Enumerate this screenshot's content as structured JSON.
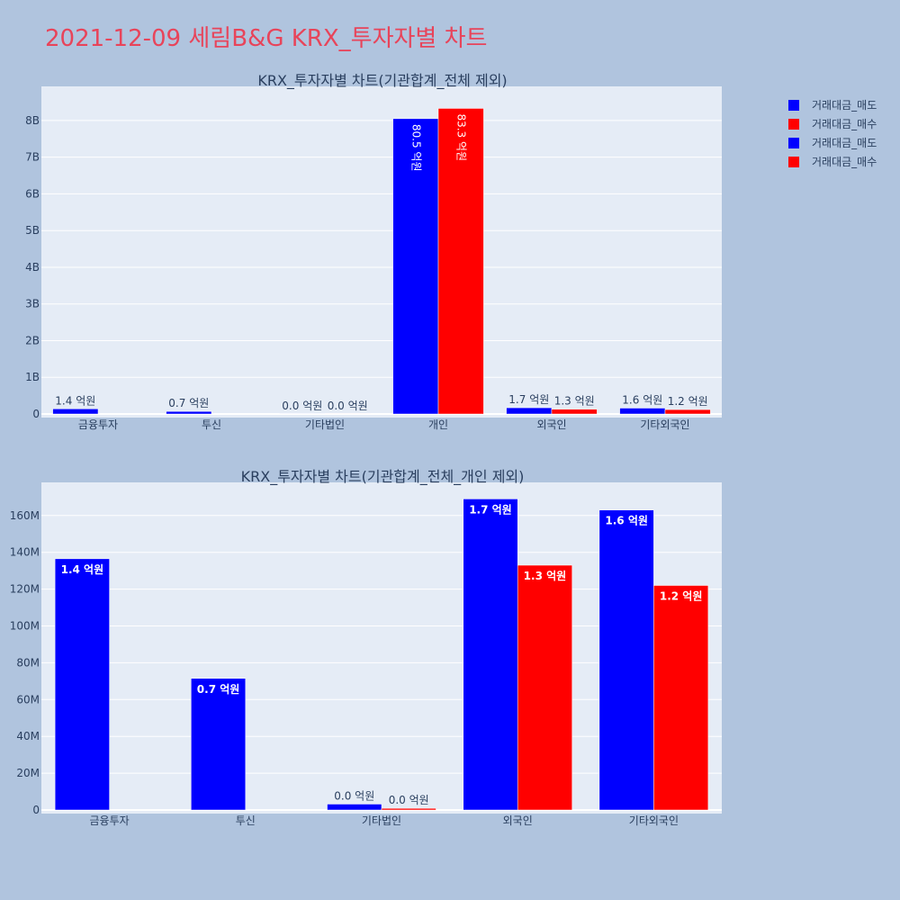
{
  "page": {
    "title": "2021-12-09 세림B&G KRX_투자자별 차트"
  },
  "legend": [
    {
      "label": "거래대금_매도",
      "color": "#0000ff"
    },
    {
      "label": "거래대금_매수",
      "color": "#ff0000"
    },
    {
      "label": "거래대금_매도",
      "color": "#0000ff"
    },
    {
      "label": "거래대금_매수",
      "color": "#ff0000"
    }
  ],
  "colors": {
    "sell": "#0000ff",
    "buy": "#ff0000",
    "plot_bg": "#e5ecf6",
    "paper_bg": "#b0c4de",
    "text": "#2a3f5f"
  },
  "chart_data": [
    {
      "type": "bar",
      "title": "KRX_투자자별 차트(기관합계_전체 제외)",
      "categories": [
        "금융투자",
        "투신",
        "기타법인",
        "개인",
        "외국인",
        "기타외국인"
      ],
      "series": [
        {
          "name": "거래대금_매도",
          "values": [
            140000000,
            70000000,
            3000000,
            8050000000,
            170000000,
            160000000
          ],
          "labels": [
            "1.4 억원",
            "0.7 억원",
            "0.0 억원",
            "80.5 억원",
            "1.7 억원",
            "1.6 억원"
          ]
        },
        {
          "name": "거래대금_매수",
          "values": [
            0,
            0,
            1000000,
            8330000000,
            130000000,
            120000000
          ],
          "labels": [
            "",
            "",
            "0.0 억원",
            "83.3 억원",
            "1.3 억원",
            "1.2 억원"
          ]
        }
      ],
      "yticks": [
        {
          "value": 0,
          "label": "0"
        },
        {
          "value": 1000000000,
          "label": "1B"
        },
        {
          "value": 2000000000,
          "label": "2B"
        },
        {
          "value": 3000000000,
          "label": "3B"
        },
        {
          "value": 4000000000,
          "label": "4B"
        },
        {
          "value": 5000000000,
          "label": "5B"
        },
        {
          "value": 6000000000,
          "label": "6B"
        },
        {
          "value": 7000000000,
          "label": "7B"
        },
        {
          "value": 8000000000,
          "label": "8B"
        }
      ],
      "ylim": [
        0,
        8930000000
      ],
      "grid": true
    },
    {
      "type": "bar",
      "title": "KRX_투자자별 차트(기관합계_전체_개인 제외)",
      "categories": [
        "금융투자",
        "투신",
        "기타법인",
        "외국인",
        "기타외국인"
      ],
      "series": [
        {
          "name": "거래대금_매도",
          "values": [
            136500000,
            71500000,
            3200000,
            169000000,
            163000000
          ],
          "labels": [
            "1.4 억원",
            "0.7 억원",
            "0.0 억원",
            "1.7 억원",
            "1.6 억원"
          ]
        },
        {
          "name": "거래대금_매수",
          "values": [
            0,
            0,
            900000,
            133000000,
            122000000
          ],
          "labels": [
            "",
            "",
            "0.0 억원",
            "1.3 억원",
            "1.2 억원"
          ]
        }
      ],
      "yticks": [
        {
          "value": 0,
          "label": "0"
        },
        {
          "value": 20000000,
          "label": "20M"
        },
        {
          "value": 40000000,
          "label": "40M"
        },
        {
          "value": 60000000,
          "label": "60M"
        },
        {
          "value": 80000000,
          "label": "80M"
        },
        {
          "value": 100000000,
          "label": "100M"
        },
        {
          "value": 120000000,
          "label": "120M"
        },
        {
          "value": 140000000,
          "label": "140M"
        },
        {
          "value": 160000000,
          "label": "160M"
        }
      ],
      "ylim": [
        0,
        178000000
      ],
      "grid": true
    }
  ]
}
